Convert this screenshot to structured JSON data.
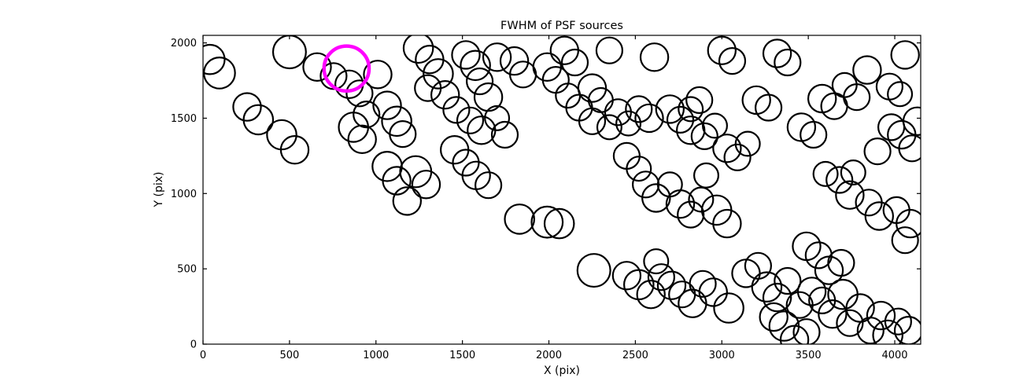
{
  "chart_data": {
    "type": "scatter",
    "title": "FWHM of PSF sources",
    "xlabel": "X (pix)",
    "ylabel": "Y (pix)",
    "xlim": [
      0,
      4150
    ],
    "ylim": [
      0,
      2050
    ],
    "xticks": [
      0,
      500,
      1000,
      1500,
      2000,
      2500,
      3000,
      3500,
      4000
    ],
    "yticks": [
      0,
      500,
      1000,
      1500,
      2000
    ],
    "grid": false,
    "legend": "none",
    "marker_style": "open-circle",
    "styles": {
      "circle_color": "#000000",
      "circle_linewidth": 2.2,
      "highlight_color": "#ff00ff",
      "highlight_linewidth": 4.5,
      "axes_color": "#000000",
      "background": "#ffffff"
    },
    "highlight_point": {
      "x": 830,
      "y": 1830,
      "r": 130
    },
    "points": [
      [
        40,
        1890,
        85
      ],
      [
        95,
        1800,
        90
      ],
      [
        255,
        1575,
        80
      ],
      [
        320,
        1490,
        85
      ],
      [
        500,
        1940,
        95
      ],
      [
        455,
        1390,
        85
      ],
      [
        530,
        1290,
        80
      ],
      [
        660,
        1840,
        80
      ],
      [
        755,
        1780,
        75
      ],
      [
        845,
        1725,
        80
      ],
      [
        905,
        1665,
        75
      ],
      [
        1010,
        1790,
        80
      ],
      [
        870,
        1440,
        85
      ],
      [
        920,
        1360,
        80
      ],
      [
        945,
        1525,
        75
      ],
      [
        1065,
        1585,
        80
      ],
      [
        1120,
        1480,
        85
      ],
      [
        1155,
        1395,
        75
      ],
      [
        1065,
        1180,
        85
      ],
      [
        1120,
        1085,
        80
      ],
      [
        1230,
        1145,
        90
      ],
      [
        1290,
        1060,
        80
      ],
      [
        1180,
        950,
        80
      ],
      [
        1245,
        1965,
        85
      ],
      [
        1310,
        1890,
        80
      ],
      [
        1360,
        1795,
        85
      ],
      [
        1300,
        1700,
        75
      ],
      [
        1400,
        1655,
        80
      ],
      [
        1465,
        1555,
        75
      ],
      [
        1520,
        1920,
        80
      ],
      [
        1575,
        1850,
        85
      ],
      [
        1600,
        1745,
        75
      ],
      [
        1650,
        1640,
        80
      ],
      [
        1545,
        1485,
        75
      ],
      [
        1610,
        1420,
        80
      ],
      [
        1455,
        1290,
        80
      ],
      [
        1520,
        1205,
        75
      ],
      [
        1580,
        1120,
        80
      ],
      [
        1650,
        1055,
        75
      ],
      [
        1700,
        1500,
        70
      ],
      [
        1745,
        1390,
        75
      ],
      [
        1800,
        1880,
        80
      ],
      [
        1850,
        1790,
        75
      ],
      [
        1700,
        1905,
        80
      ],
      [
        1990,
        1840,
        80
      ],
      [
        2040,
        1755,
        75
      ],
      [
        2090,
        1950,
        80
      ],
      [
        2150,
        1870,
        75
      ],
      [
        2110,
        1650,
        70
      ],
      [
        2175,
        1570,
        75
      ],
      [
        2250,
        1700,
        80
      ],
      [
        2300,
        1620,
        70
      ],
      [
        2250,
        1480,
        75
      ],
      [
        2350,
        1440,
        70
      ],
      [
        2400,
        1540,
        75
      ],
      [
        2460,
        1465,
        70
      ],
      [
        2520,
        1560,
        75
      ],
      [
        2580,
        1500,
        80
      ],
      [
        2610,
        1905,
        80
      ],
      [
        2350,
        1950,
        75
      ],
      [
        2450,
        1250,
        75
      ],
      [
        2520,
        1165,
        70
      ],
      [
        2700,
        1560,
        80
      ],
      [
        2760,
        1490,
        75
      ],
      [
        2820,
        1560,
        70
      ],
      [
        2870,
        1620,
        75
      ],
      [
        2820,
        1420,
        80
      ],
      [
        2900,
        1380,
        75
      ],
      [
        2960,
        1450,
        70
      ],
      [
        3030,
        1300,
        80
      ],
      [
        3090,
        1240,
        75
      ],
      [
        3150,
        1330,
        70
      ],
      [
        3200,
        1620,
        80
      ],
      [
        3270,
        1570,
        75
      ],
      [
        3000,
        1950,
        80
      ],
      [
        3060,
        1880,
        75
      ],
      [
        3320,
        1930,
        80
      ],
      [
        3380,
        1870,
        75
      ],
      [
        2560,
        1060,
        75
      ],
      [
        2620,
        970,
        80
      ],
      [
        2700,
        1060,
        70
      ],
      [
        2760,
        930,
        80
      ],
      [
        2820,
        860,
        75
      ],
      [
        2880,
        960,
        70
      ],
      [
        2970,
        890,
        85
      ],
      [
        3030,
        800,
        80
      ],
      [
        2910,
        1120,
        70
      ],
      [
        1990,
        810,
        90
      ],
      [
        2060,
        800,
        85
      ],
      [
        1830,
        830,
        85
      ],
      [
        2260,
        490,
        95
      ],
      [
        2450,
        455,
        80
      ],
      [
        2520,
        395,
        85
      ],
      [
        2590,
        330,
        80
      ],
      [
        2650,
        445,
        75
      ],
      [
        2710,
        390,
        80
      ],
      [
        2770,
        330,
        75
      ],
      [
        2830,
        270,
        80
      ],
      [
        2890,
        400,
        75
      ],
      [
        2950,
        345,
        80
      ],
      [
        3040,
        240,
        85
      ],
      [
        2620,
        550,
        70
      ],
      [
        3140,
        470,
        80
      ],
      [
        3210,
        520,
        75
      ],
      [
        3260,
        380,
        85
      ],
      [
        3320,
        310,
        80
      ],
      [
        3380,
        420,
        75
      ],
      [
        3300,
        180,
        80
      ],
      [
        3360,
        120,
        85
      ],
      [
        3450,
        260,
        75
      ],
      [
        3520,
        350,
        80
      ],
      [
        3580,
        290,
        75
      ],
      [
        3640,
        200,
        80
      ],
      [
        3700,
        330,
        85
      ],
      [
        3740,
        140,
        75
      ],
      [
        3800,
        240,
        80
      ],
      [
        3860,
        90,
        75
      ],
      [
        3920,
        190,
        80
      ],
      [
        3960,
        60,
        85
      ],
      [
        4020,
        150,
        75
      ],
      [
        4080,
        90,
        80
      ],
      [
        3420,
        30,
        80
      ],
      [
        3490,
        80,
        75
      ],
      [
        3460,
        1440,
        80
      ],
      [
        3530,
        1390,
        75
      ],
      [
        3600,
        1130,
        70
      ],
      [
        3680,
        1090,
        75
      ],
      [
        3740,
        990,
        80
      ],
      [
        3850,
        940,
        75
      ],
      [
        3910,
        850,
        80
      ],
      [
        4010,
        890,
        75
      ],
      [
        4090,
        800,
        80
      ],
      [
        4060,
        690,
        75
      ],
      [
        3580,
        1630,
        80
      ],
      [
        3650,
        1580,
        75
      ],
      [
        3710,
        1720,
        70
      ],
      [
        3780,
        1640,
        75
      ],
      [
        3840,
        1820,
        80
      ],
      [
        3980,
        1440,
        75
      ],
      [
        4040,
        1390,
        80
      ],
      [
        4100,
        1300,
        75
      ],
      [
        4130,
        1480,
        80
      ],
      [
        3900,
        1280,
        75
      ],
      [
        3490,
        650,
        80
      ],
      [
        3560,
        590,
        75
      ],
      [
        3620,
        490,
        80
      ],
      [
        3690,
        540,
        75
      ],
      [
        3760,
        1140,
        70
      ],
      [
        4060,
        1920,
        80
      ],
      [
        3970,
        1710,
        75
      ],
      [
        4030,
        1660,
        70
      ]
    ]
  }
}
